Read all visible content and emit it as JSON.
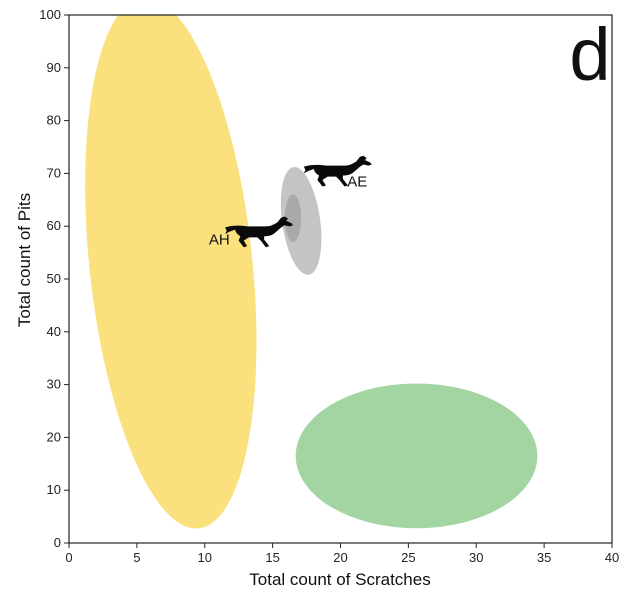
{
  "chart_data": {
    "type": "scatter",
    "panel_label": "d",
    "xlabel": "Total count of Scratches",
    "ylabel": "Total count of Pits",
    "xlim": [
      0,
      40
    ],
    "ylim": [
      0,
      100
    ],
    "xticks": [
      0,
      5,
      10,
      15,
      20,
      25,
      30,
      35,
      40
    ],
    "yticks": [
      0,
      10,
      20,
      30,
      40,
      50,
      60,
      70,
      80,
      90,
      100
    ],
    "grid": false,
    "ellipses": [
      {
        "cx": 7.5,
        "cy": 53,
        "rx": 6,
        "ry": 50.5,
        "angle": -6,
        "color": "#fbe07e"
      },
      {
        "cx": 25.6,
        "cy": 16.5,
        "rx": 8.9,
        "ry": 13.7,
        "angle": 0,
        "color": "#a2d5a2"
      },
      {
        "cx": 17.1,
        "cy": 61,
        "rx": 1.4,
        "ry": 10.3,
        "angle": -8,
        "color": "#c4c4c6"
      },
      {
        "cx": 16.5,
        "cy": 61.5,
        "rx": 0.6,
        "ry": 4.5,
        "angle": 0,
        "color": "#a9a9ab"
      }
    ],
    "points": [
      {
        "label": "AE",
        "x": 19.8,
        "y": 70.5,
        "label_x": 20.5,
        "label_y": 68.5,
        "icon": "horse-icon"
      },
      {
        "label": "AH",
        "x": 14.0,
        "y": 59.0,
        "label_x": 10.3,
        "label_y": 57.5,
        "icon": "horse-icon"
      }
    ]
  }
}
